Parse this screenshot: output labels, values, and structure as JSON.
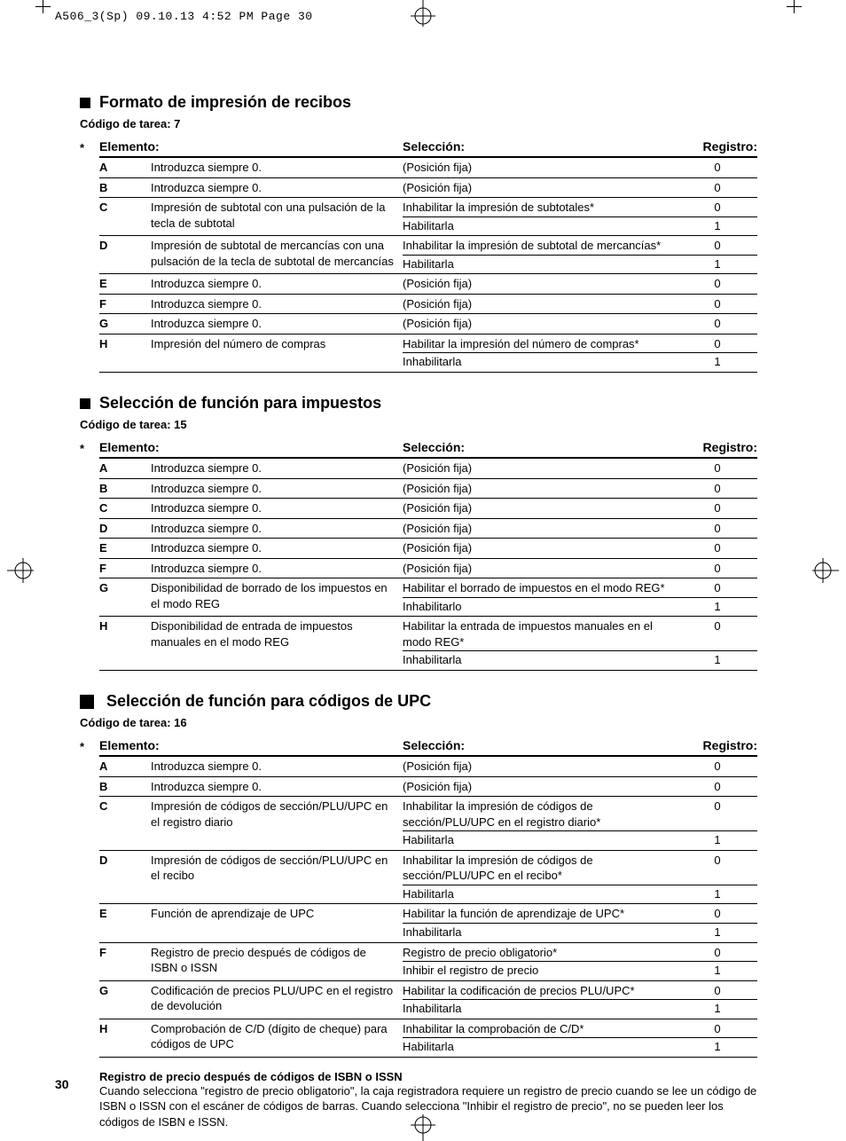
{
  "meta": {
    "header_line": "A506_3(Sp) 09.10.13 4:52 PM Page 30",
    "page_number": "30"
  },
  "column_headers": {
    "elemento": "Elemento:",
    "seleccion": "Selección:",
    "registro": "Registro:",
    "asterisk": "*"
  },
  "section1": {
    "title": "Formato de impresión de recibos",
    "task_code": "Código de tarea: 7",
    "rows": [
      {
        "key": "A",
        "desc": "Introduzca siempre 0.",
        "opts": [
          {
            "sel": "(Posición fija)",
            "reg": "0"
          }
        ]
      },
      {
        "key": "B",
        "desc": "Introduzca siempre 0.",
        "opts": [
          {
            "sel": "(Posición fija)",
            "reg": "0"
          }
        ]
      },
      {
        "key": "C",
        "desc": "Impresión de subtotal con una pulsación de la tecla de subtotal",
        "opts": [
          {
            "sel": "Inhabilitar la impresión de subtotales*",
            "reg": "0"
          },
          {
            "sel": "Habilitarla",
            "reg": "1"
          }
        ]
      },
      {
        "key": "D",
        "desc": "Impresión de subtotal de mercancías con una pulsación de la tecla de subtotal de mercancías",
        "opts": [
          {
            "sel": "Inhabilitar la impresión de subtotal de mercancías*",
            "reg": "0"
          },
          {
            "sel": "Habilitarla",
            "reg": "1"
          }
        ]
      },
      {
        "key": "E",
        "desc": "Introduzca siempre 0.",
        "opts": [
          {
            "sel": "(Posición fija)",
            "reg": "0"
          }
        ]
      },
      {
        "key": "F",
        "desc": "Introduzca siempre 0.",
        "opts": [
          {
            "sel": "(Posición fija)",
            "reg": "0"
          }
        ]
      },
      {
        "key": "G",
        "desc": "Introduzca siempre 0.",
        "opts": [
          {
            "sel": "(Posición fija)",
            "reg": "0"
          }
        ]
      },
      {
        "key": "H",
        "desc": "Impresión del número de compras",
        "opts": [
          {
            "sel": "Habilitar la impresión del número de compras*",
            "reg": "0"
          },
          {
            "sel": "Inhabilitarla",
            "reg": "1"
          }
        ]
      }
    ]
  },
  "section2": {
    "title": "Selección de función para impuestos",
    "task_code": "Código de tarea: 15",
    "rows": [
      {
        "key": "A",
        "desc": "Introduzca siempre 0.",
        "opts": [
          {
            "sel": "(Posición fija)",
            "reg": "0"
          }
        ]
      },
      {
        "key": "B",
        "desc": "Introduzca siempre 0.",
        "opts": [
          {
            "sel": "(Posición fija)",
            "reg": "0"
          }
        ]
      },
      {
        "key": "C",
        "desc": "Introduzca siempre 0.",
        "opts": [
          {
            "sel": "(Posición fija)",
            "reg": "0"
          }
        ]
      },
      {
        "key": "D",
        "desc": "Introduzca siempre 0.",
        "opts": [
          {
            "sel": "(Posición fija)",
            "reg": "0"
          }
        ]
      },
      {
        "key": "E",
        "desc": "Introduzca siempre 0.",
        "opts": [
          {
            "sel": "(Posición fija)",
            "reg": "0"
          }
        ]
      },
      {
        "key": "F",
        "desc": "Introduzca siempre 0.",
        "opts": [
          {
            "sel": "(Posición fija)",
            "reg": "0"
          }
        ]
      },
      {
        "key": "G",
        "desc": "Disponibilidad de borrado de los impuestos en el modo REG",
        "opts": [
          {
            "sel": "Habilitar el borrado de impuestos en el modo REG*",
            "reg": "0"
          },
          {
            "sel": "Inhabilitarlo",
            "reg": "1"
          }
        ]
      },
      {
        "key": "H",
        "desc": "Disponibilidad de entrada de impuestos manuales en el modo REG",
        "opts": [
          {
            "sel": "Habilitar la entrada de impuestos manuales en el modo REG*",
            "reg": "0"
          },
          {
            "sel": "Inhabilitarla",
            "reg": "1"
          }
        ]
      }
    ]
  },
  "section3": {
    "title": "Selección de función para códigos de UPC",
    "task_code": "Código de tarea: 16",
    "rows": [
      {
        "key": "A",
        "desc": "Introduzca siempre 0.",
        "opts": [
          {
            "sel": "(Posición fija)",
            "reg": "0"
          }
        ]
      },
      {
        "key": "B",
        "desc": "Introduzca siempre 0.",
        "opts": [
          {
            "sel": "(Posición fija)",
            "reg": "0"
          }
        ]
      },
      {
        "key": "C",
        "desc": "Impresión de códigos de sección/PLU/UPC en el registro diario",
        "opts": [
          {
            "sel": "Inhabilitar la impresión de códigos de sección/PLU/UPC en el registro diario*",
            "reg": "0"
          },
          {
            "sel": "Habilitarla",
            "reg": "1"
          }
        ]
      },
      {
        "key": "D",
        "desc": "Impresión de códigos de sección/PLU/UPC en el recibo",
        "opts": [
          {
            "sel": "Inhabilitar la impresión de códigos de sección/PLU/UPC en el recibo*",
            "reg": "0"
          },
          {
            "sel": "Habilitarla",
            "reg": "1"
          }
        ]
      },
      {
        "key": "E",
        "desc": "Función de aprendizaje de UPC",
        "opts": [
          {
            "sel": "Habilitar la función de aprendizaje de UPC*",
            "reg": "0"
          },
          {
            "sel": "Inhabilitarla",
            "reg": "1"
          }
        ]
      },
      {
        "key": "F",
        "desc": "Registro de precio después de códigos de ISBN o ISSN",
        "opts": [
          {
            "sel": "Registro de precio obligatorio*",
            "reg": "0"
          },
          {
            "sel": "Inhibir el registro de precio",
            "reg": "1"
          }
        ]
      },
      {
        "key": "G",
        "desc": "Codificación de precios PLU/UPC en el registro de devolución",
        "opts": [
          {
            "sel": "Habilitar la codificación de precios PLU/UPC*",
            "reg": "0"
          },
          {
            "sel": "Inhabilitarla",
            "reg": "1"
          }
        ]
      },
      {
        "key": "H",
        "desc": "Comprobación de C/D (dígito de cheque) para códigos de UPC",
        "opts": [
          {
            "sel": "Inhabilitar la comprobación de C/D*",
            "reg": "0"
          },
          {
            "sel": "Habilitarla",
            "reg": "1"
          }
        ]
      }
    ]
  },
  "footnote": {
    "title": "Registro de precio después de códigos de ISBN o ISSN",
    "body": "Cuando selecciona \"registro de precio obligatorio\", la caja registradora requiere un registro de precio cuando se lee un código de ISBN o ISSN con el escáner de códigos de barras. Cuando selecciona \"Inhibir el registro de precio\", no se pueden leer los códigos de ISBN e ISSN."
  }
}
